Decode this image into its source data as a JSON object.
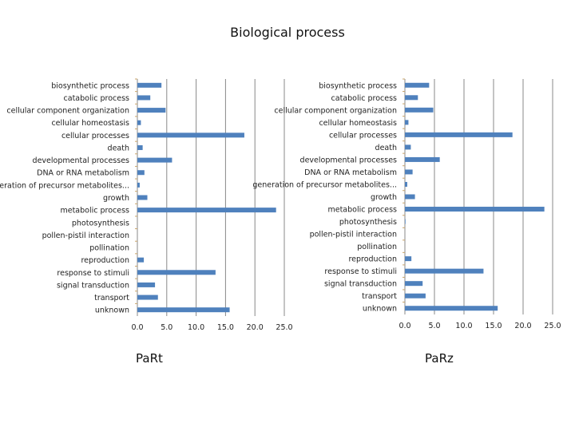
{
  "title": "Biological process",
  "chart_data": [
    {
      "type": "bar",
      "orientation": "horizontal",
      "title": "PaRt",
      "categories": [
        "biosynthetic process",
        "catabolic process",
        "cellular component organization",
        "cellular homeostasis",
        "cellular processes",
        "death",
        "developmental processes",
        "DNA or RNA metabolism",
        "generation of precursor metabolites...",
        "growth",
        "metabolic process",
        "photosynthesis",
        "pollen-pistil interaction",
        "pollination",
        "reproduction",
        "response to stimuli",
        "signal transduction",
        "transport",
        "unknown"
      ],
      "values": [
        4.1,
        2.2,
        4.8,
        0.6,
        18.2,
        0.9,
        5.9,
        1.2,
        0.4,
        1.7,
        23.6,
        0,
        0,
        0,
        1.1,
        13.3,
        3.0,
        3.5,
        15.7
      ],
      "xlim": [
        0,
        25
      ],
      "xticks": [
        "0.0",
        "5.0",
        "10.0",
        "15.0",
        "20.0",
        "25.0"
      ],
      "grid": true,
      "color": "#4f81bd"
    },
    {
      "type": "bar",
      "orientation": "horizontal",
      "title": "PaRz",
      "categories": [
        "biosynthetic process",
        "catabolic process",
        "cellular component organization",
        "cellular homeostasis",
        "cellular processes",
        "death",
        "developmental processes",
        "DNA or RNA metabolism",
        "generation of precursor metabolites...",
        "growth",
        "metabolic process",
        "photosynthesis",
        "pollen-pistil interaction",
        "pollination",
        "reproduction",
        "response to stimuli",
        "signal transduction",
        "transport",
        "unknown"
      ],
      "values": [
        4.1,
        2.2,
        4.8,
        0.6,
        18.2,
        1.0,
        5.9,
        1.3,
        0.4,
        1.7,
        23.6,
        0.1,
        0,
        0,
        1.1,
        13.3,
        3.0,
        3.5,
        15.7
      ],
      "xlim": [
        0,
        25
      ],
      "xticks": [
        "0.0",
        "5.0",
        "10.0",
        "15.0",
        "20.0",
        "25.0"
      ],
      "grid": true,
      "color": "#4f81bd"
    }
  ]
}
